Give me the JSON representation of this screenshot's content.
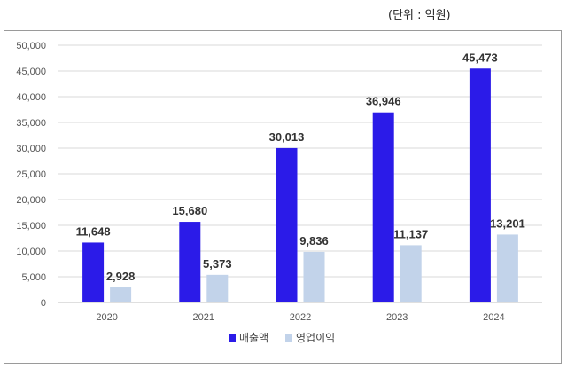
{
  "unit_note": "(단위 : 억원)",
  "chart_data": {
    "type": "bar",
    "categories": [
      "2020",
      "2021",
      "2022",
      "2023",
      "2024"
    ],
    "ylim": [
      0,
      50000
    ],
    "yticks": [
      "0",
      "5,000",
      "10,000",
      "15,000",
      "20,000",
      "25,000",
      "30,000",
      "35,000",
      "40,000",
      "45,000",
      "50,000"
    ],
    "grid": true,
    "legend_position": "bottom",
    "series": [
      {
        "name": "매출액",
        "color": "#2b1be8",
        "values": [
          11648,
          15680,
          30013,
          36946,
          45473
        ],
        "labels": [
          "11,648",
          "15,680",
          "30,013",
          "36,946",
          "45,473"
        ]
      },
      {
        "name": "영업이익",
        "color": "#c2d3ea",
        "values": [
          2928,
          5373,
          9836,
          11137,
          13201
        ],
        "labels": [
          "2,928",
          "5,373",
          "9,836",
          "11,137",
          "13,201"
        ]
      }
    ]
  }
}
